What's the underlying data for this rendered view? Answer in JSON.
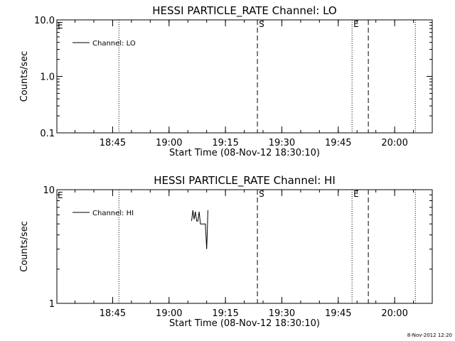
{
  "chart_data": [
    {
      "type": "line",
      "title": "HESSI PARTICLE_RATE Channel: LO",
      "xlabel": "Start Time (08-Nov-12 18:30:10)",
      "ylabel": "Counts/sec",
      "yscale": "log",
      "ylim": [
        0.1,
        10.0
      ],
      "yticks": [
        0.1,
        1.0,
        10.0
      ],
      "ytick_labels": [
        "0.1",
        "1.0",
        "10.0"
      ],
      "xlim": [
        "18:30:10",
        "20:10:00"
      ],
      "xticks": [
        "18:45",
        "19:00",
        "19:15",
        "19:30",
        "19:45",
        "20:00"
      ],
      "grid": false,
      "legend": "top-left",
      "series": [
        {
          "name": "Channel: LO",
          "points": []
        }
      ],
      "markers": [
        {
          "time": "18:46:40",
          "style": "dotted",
          "label": ""
        },
        {
          "time": "19:23:30",
          "style": "dashed",
          "label": "S"
        },
        {
          "time": "19:48:40",
          "style": "dotted",
          "label": "E"
        },
        {
          "time": "19:53:00",
          "style": "dashed",
          "label": ""
        },
        {
          "time": "20:05:30",
          "style": "dotted",
          "label": ""
        }
      ],
      "edge_label": "E"
    },
    {
      "type": "line",
      "title": "HESSI PARTICLE_RATE Channel: HI",
      "xlabel": "Start Time (08-Nov-12 18:30:10)",
      "ylabel": "Counts/sec",
      "yscale": "log",
      "ylim": [
        1,
        10
      ],
      "yticks": [
        1,
        10
      ],
      "ytick_labels": [
        "1",
        "10"
      ],
      "xlim": [
        "18:30:10",
        "20:10:00"
      ],
      "xticks": [
        "18:45",
        "19:00",
        "19:15",
        "19:30",
        "19:45",
        "20:00"
      ],
      "grid": false,
      "legend": "top-left",
      "series": [
        {
          "name": "Channel: HI",
          "points": [
            [
              "19:06:00",
              5.3
            ],
            [
              "19:06:20",
              6.6
            ],
            [
              "19:06:40",
              5.5
            ],
            [
              "19:07:00",
              6.4
            ],
            [
              "19:07:20",
              5.3
            ],
            [
              "19:07:40",
              5.3
            ],
            [
              "19:08:00",
              6.4
            ],
            [
              "19:08:20",
              5.0
            ],
            [
              "19:08:40",
              5.0
            ],
            [
              "19:09:00",
              5.0
            ],
            [
              "19:09:20",
              5.0
            ],
            [
              "19:09:40",
              5.0
            ],
            [
              "19:10:00",
              3.0
            ],
            [
              "19:10:10",
              4.3
            ],
            [
              "19:10:20",
              6.6
            ]
          ]
        }
      ],
      "markers": [
        {
          "time": "18:46:40",
          "style": "dotted",
          "label": ""
        },
        {
          "time": "19:23:30",
          "style": "dashed",
          "label": "S"
        },
        {
          "time": "19:48:40",
          "style": "dotted",
          "label": "E"
        },
        {
          "time": "19:53:00",
          "style": "dashed",
          "label": ""
        },
        {
          "time": "20:05:30",
          "style": "dotted",
          "label": ""
        }
      ],
      "edge_label": "E"
    }
  ],
  "footer": {
    "timestamp": "8-Nov-2012 12:20"
  },
  "colors": {
    "background": "#ffffff",
    "foreground": "#000000"
  }
}
